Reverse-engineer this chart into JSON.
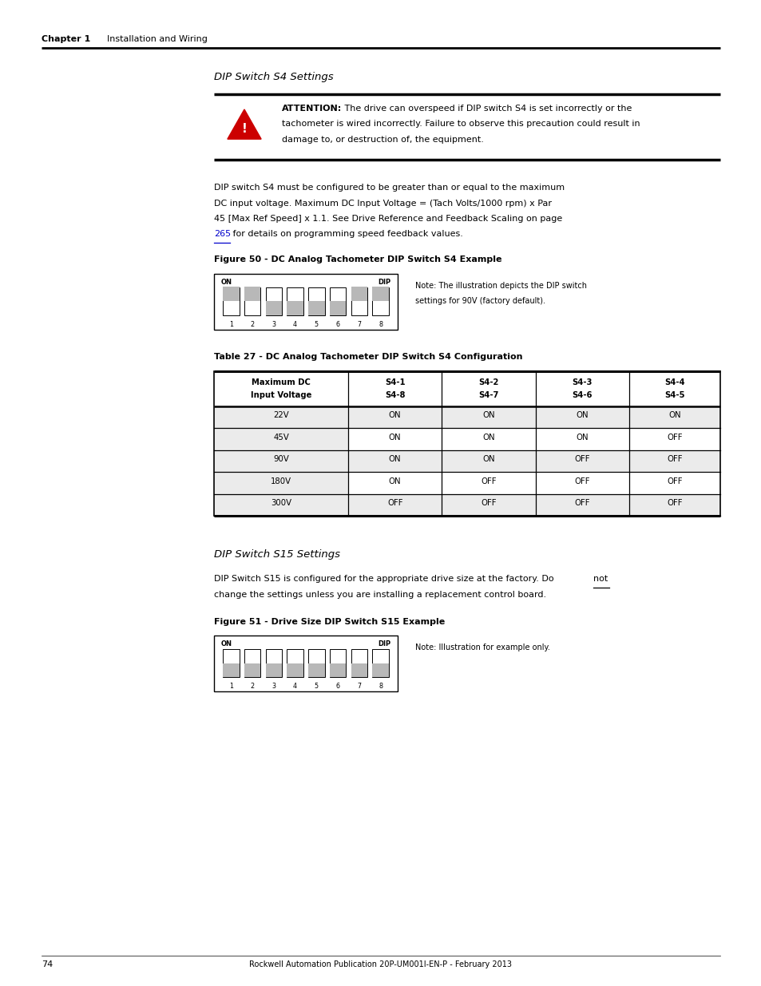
{
  "page_width": 9.54,
  "page_height": 12.35,
  "dpi": 100,
  "bg_color": "#ffffff",
  "header_chapter": "Chapter 1",
  "header_section": "Installation and Wiring",
  "footer_text": "74",
  "footer_center": "Rockwell Automation Publication 20P-UM001I-EN-P - February 2013",
  "section1_title": "DIP Switch S4 Settings",
  "attention_bold": "ATTENTION:",
  "attention_line1": " The drive can overspeed if DIP switch S4 is set incorrectly or the",
  "attention_line2": "tachometer is wired incorrectly. Failure to observe this precaution could result in",
  "attention_line3": "damage to, or destruction of, the equipment.",
  "body1_line1": "DIP switch S4 must be configured to be greater than or equal to the maximum",
  "body1_line2": "DC input voltage. Maximum DC Input Voltage = (Tach Volts/1000 rpm) x Par",
  "body1_line3": "45 [Max Ref Speed] x 1.1. See Drive Reference and Feedback Scaling on page",
  "body1_link": "265",
  "body1_line4": " for details on programming speed feedback values.",
  "fig50_title": "Figure 50 - DC Analog Tachometer DIP Switch S4 Example",
  "fig50_note_line1": "Note: The illustration depicts the DIP switch",
  "fig50_note_line2": "settings for 90V (factory default).",
  "fig50_states": [
    "ON",
    "ON",
    "OFF",
    "OFF",
    "OFF",
    "OFF",
    "ON",
    "ON"
  ],
  "table27_title": "Table 27 - DC Analog Tachometer DIP Switch S4 Configuration",
  "table27_headers": [
    [
      "Maximum DC",
      "Input Voltage"
    ],
    [
      "S4-1",
      "S4-8"
    ],
    [
      "S4-2",
      "S4-7"
    ],
    [
      "S4-3",
      "S4-6"
    ],
    [
      "S4-4",
      "S4-5"
    ]
  ],
  "table27_rows": [
    [
      "22V",
      "ON",
      "ON",
      "ON",
      "ON"
    ],
    [
      "45V",
      "ON",
      "ON",
      "ON",
      "OFF"
    ],
    [
      "90V",
      "ON",
      "ON",
      "OFF",
      "OFF"
    ],
    [
      "180V",
      "ON",
      "OFF",
      "OFF",
      "OFF"
    ],
    [
      "300V",
      "OFF",
      "OFF",
      "OFF",
      "OFF"
    ]
  ],
  "section2_title": "DIP Switch S15 Settings",
  "body2_line1a": "DIP Switch S15 is configured for the appropriate drive size at the factory. Do ",
  "body2_line1b": "not",
  "body2_line2": "change the settings unless you are installing a replacement control board.",
  "fig51_title": "Figure 51 - Drive Size DIP Switch S15 Example",
  "fig51_note": "Note: Illustration for example only.",
  "fig51_states": [
    "OFF",
    "OFF",
    "OFF",
    "OFF",
    "OFF",
    "OFF",
    "OFF",
    "OFF"
  ],
  "link_color": "#0000cc",
  "tri_color": "#cc0000",
  "table_alt_bg": "#ebebeb",
  "left_col_bg": "#ebebeb"
}
